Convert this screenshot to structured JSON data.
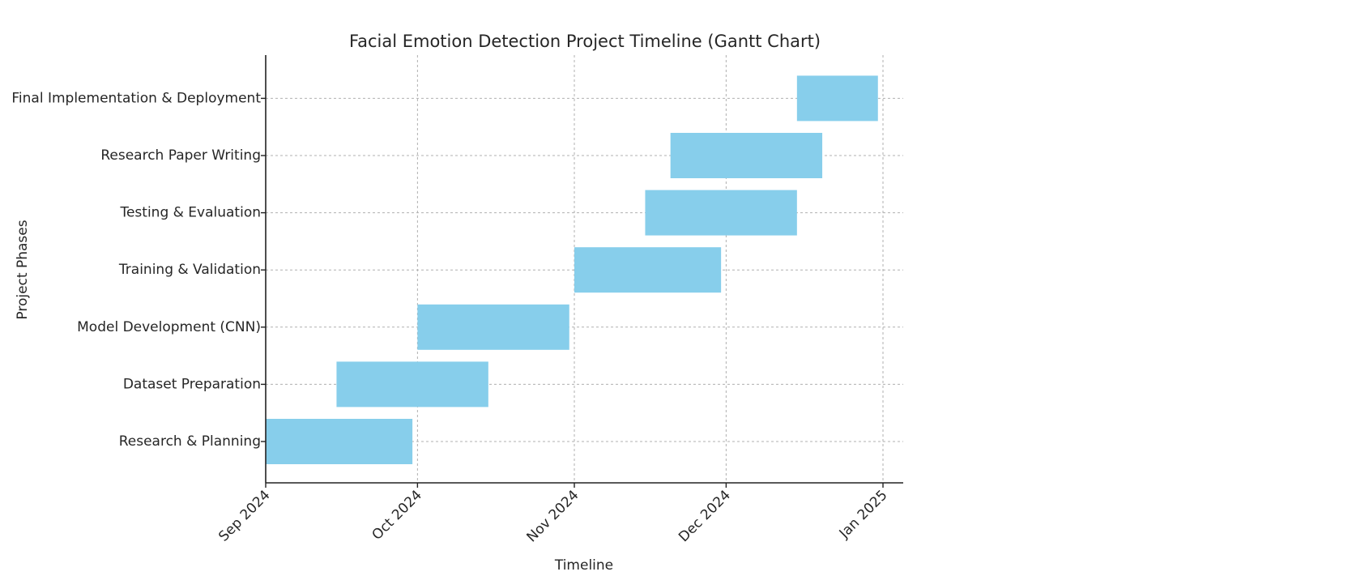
{
  "chart_data": {
    "type": "gantt",
    "title": "Facial Emotion Detection Project Timeline (Gantt Chart)",
    "xlabel": "Timeline",
    "ylabel": "Project Phases",
    "xlim": [
      "2024-09-01",
      "2025-01-05"
    ],
    "x_ticks": [
      {
        "date": "2024-09-01",
        "label": "Sep 2024"
      },
      {
        "date": "2024-10-01",
        "label": "Oct 2024"
      },
      {
        "date": "2024-11-01",
        "label": "Nov 2024"
      },
      {
        "date": "2024-12-01",
        "label": "Dec 2024"
      },
      {
        "date": "2025-01-01",
        "label": "Jan 2025"
      }
    ],
    "tasks": [
      {
        "name": "Research & Planning",
        "start": "2024-09-01",
        "end": "2024-09-30"
      },
      {
        "name": "Dataset Preparation",
        "start": "2024-09-15",
        "end": "2024-10-15"
      },
      {
        "name": "Model Development (CNN)",
        "start": "2024-10-01",
        "end": "2024-10-31"
      },
      {
        "name": "Training & Validation",
        "start": "2024-11-01",
        "end": "2024-11-30"
      },
      {
        "name": "Testing & Evaluation",
        "start": "2024-11-15",
        "end": "2024-12-15"
      },
      {
        "name": "Research Paper Writing",
        "start": "2024-11-20",
        "end": "2024-12-20"
      },
      {
        "name": "Final Implementation & Deployment",
        "start": "2024-12-15",
        "end": "2024-12-31"
      }
    ],
    "bar_color": "#87ceeb",
    "grid": true,
    "grid_style": "dashed"
  }
}
